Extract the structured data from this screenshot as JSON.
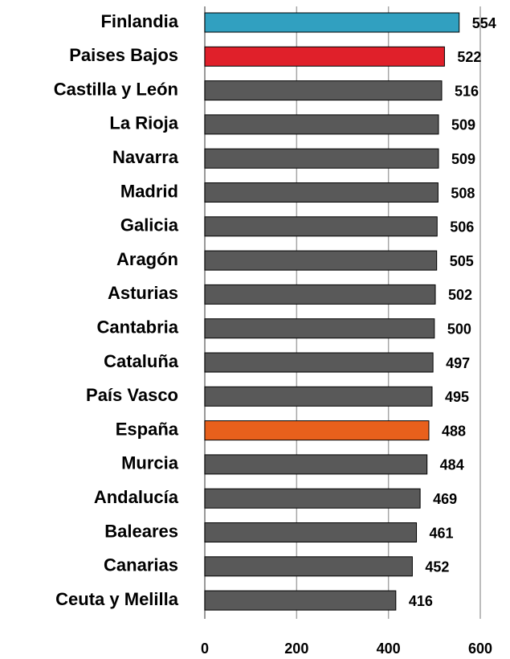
{
  "chart_data": {
    "type": "barh",
    "categories": [
      "Finlandia",
      "Paises Bajos",
      "Castilla y León",
      "La Rioja",
      "Navarra",
      "Madrid",
      "Galicia",
      "Aragón",
      "Asturias",
      "Cantabria",
      "Cataluña",
      "País Vasco",
      "España",
      "Murcia",
      "Andalucía",
      "Baleares",
      "Canarias",
      "Ceuta y Melilla"
    ],
    "values": [
      554,
      522,
      516,
      509,
      509,
      508,
      506,
      505,
      502,
      500,
      497,
      495,
      488,
      484,
      469,
      461,
      452,
      416
    ],
    "colors": [
      "#31a0c0",
      "#e0202a",
      "#595959",
      "#595959",
      "#595959",
      "#595959",
      "#595959",
      "#595959",
      "#595959",
      "#595959",
      "#595959",
      "#595959",
      "#e8601c",
      "#595959",
      "#595959",
      "#595959",
      "#595959",
      "#595959"
    ],
    "xlim": [
      0,
      600
    ],
    "xticks": [
      0,
      200,
      400,
      600
    ],
    "grid": true
  }
}
